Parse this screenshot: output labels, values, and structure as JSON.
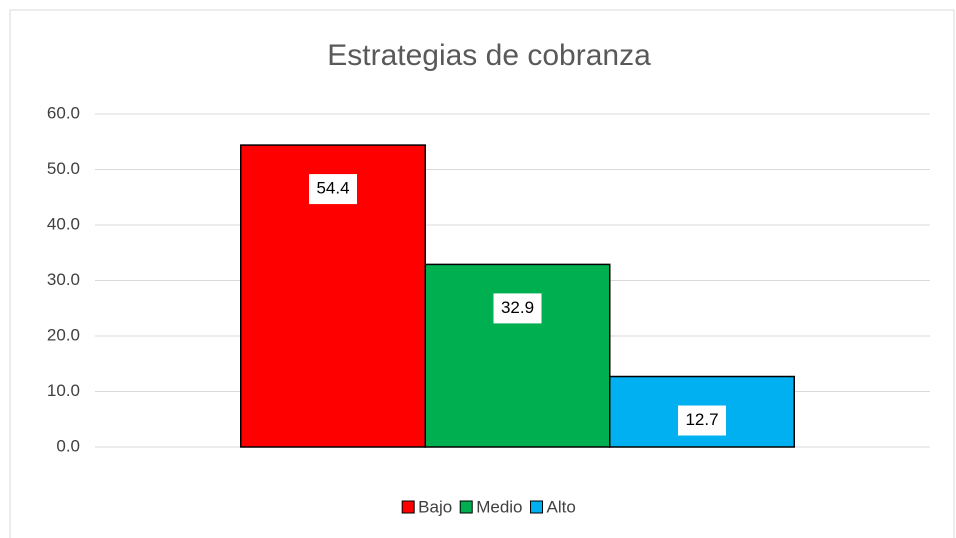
{
  "chart_data": {
    "type": "bar",
    "title": "Estrategias de cobranza",
    "series": [
      {
        "name": "Bajo",
        "color": "#ff0000",
        "values": [
          54.4
        ]
      },
      {
        "name": "Medio",
        "color": "#00b050",
        "values": [
          32.9
        ]
      },
      {
        "name": "Alto",
        "color": "#00b0f0",
        "values": [
          12.7
        ]
      }
    ],
    "ylim": [
      0,
      60
    ],
    "yticks": [
      {
        "value": 0,
        "label": "0.0"
      },
      {
        "value": 10,
        "label": "10.0"
      },
      {
        "value": 20,
        "label": "20.0"
      },
      {
        "value": 30,
        "label": "30.0"
      },
      {
        "value": 40,
        "label": "40.0"
      },
      {
        "value": 50,
        "label": "50.0"
      },
      {
        "value": 60,
        "label": "60.0"
      }
    ],
    "grid": true,
    "legend": "bottom"
  }
}
